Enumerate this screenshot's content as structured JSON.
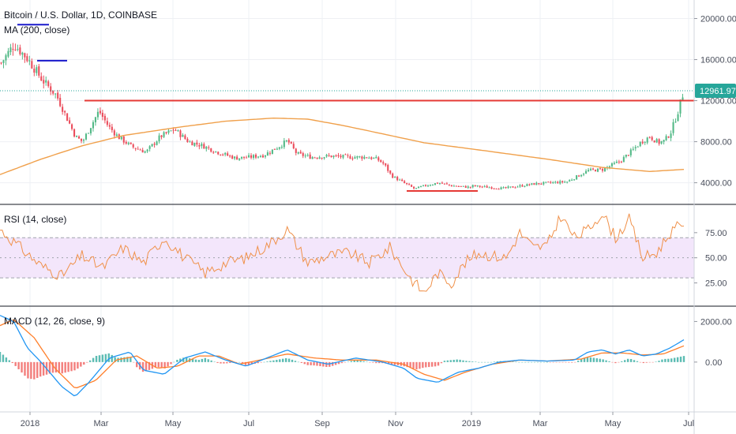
{
  "colors": {
    "up": "#26a69a",
    "down": "#ef5350",
    "candle_up": "#53b987",
    "candle_down": "#eb4d5c",
    "ma": "#f0a04b",
    "rsi": "#f0914a",
    "rsi_band": "#f3e6fb",
    "macd": "#2196f3",
    "signal": "#ff7f2a",
    "red_line": "#e53935",
    "blue_line": "#1a1acc",
    "price_tag_bg": "#26a69a",
    "grid": "#d8d8de"
  },
  "chart_data": [
    {
      "panel": "price",
      "type": "candlestick",
      "title": "Bitcoin / U.S. Dollar, 1D, COINBASE",
      "indicator_label": "MA (200, close)",
      "last_price_label": "12961.97",
      "y_ticks": [
        "20000.00",
        "16000.00",
        "12000.00",
        "8000.00",
        "4000.00"
      ],
      "ylim": [
        2200,
        21500
      ],
      "x_ticks": [
        "2018",
        "Mar",
        "May",
        "Jul",
        "Sep",
        "Nov",
        "2019",
        "Mar",
        "May",
        "Jul"
      ],
      "close_anchors": [
        [
          0,
          15500
        ],
        [
          0.03,
          17500
        ],
        [
          0.06,
          16000
        ],
        [
          0.09,
          14000
        ],
        [
          0.12,
          12500
        ],
        [
          0.14,
          10500
        ],
        [
          0.16,
          8500
        ],
        [
          0.175,
          8000
        ],
        [
          0.19,
          9300
        ],
        [
          0.21,
          11000
        ],
        [
          0.23,
          9500
        ],
        [
          0.25,
          8500
        ],
        [
          0.28,
          7500
        ],
        [
          0.31,
          7000
        ],
        [
          0.34,
          8500
        ],
        [
          0.37,
          9200
        ],
        [
          0.4,
          8000
        ],
        [
          0.43,
          7600
        ],
        [
          0.46,
          7000
        ],
        [
          0.5,
          6400
        ],
        [
          0.53,
          6500
        ],
        [
          0.56,
          6700
        ],
        [
          0.59,
          7500
        ],
        [
          0.61,
          8100
        ],
        [
          0.63,
          6800
        ],
        [
          0.66,
          6500
        ],
        [
          0.7,
          6600
        ],
        [
          0.74,
          6500
        ],
        [
          0.78,
          6500
        ],
        [
          0.8,
          6300
        ],
        [
          0.815,
          5800
        ],
        [
          0.83,
          4700
        ],
        [
          0.86,
          3900
        ],
        [
          0.88,
          3400
        ],
        [
          0.9,
          3700
        ],
        [
          0.93,
          4000
        ],
        [
          0.96,
          3700
        ],
        [
          1.0,
          3550
        ]
      ],
      "close_anchors_2019": [
        [
          0,
          3700
        ],
        [
          0.15,
          3450
        ],
        [
          0.3,
          3900
        ],
        [
          0.45,
          4100
        ],
        [
          0.55,
          5200
        ],
        [
          0.62,
          5300
        ],
        [
          0.7,
          6100
        ],
        [
          0.76,
          7200
        ],
        [
          0.8,
          8000
        ],
        [
          0.84,
          8500
        ],
        [
          0.88,
          7900
        ],
        [
          0.91,
          8100
        ],
        [
          0.94,
          9000
        ],
        [
          0.97,
          10800
        ],
        [
          1.0,
          12961.97
        ]
      ],
      "ma200_anchors": [
        [
          0,
          4800
        ],
        [
          0.06,
          6300
        ],
        [
          0.12,
          7600
        ],
        [
          0.18,
          8600
        ],
        [
          0.26,
          9400
        ],
        [
          0.33,
          10000
        ],
        [
          0.4,
          10300
        ],
        [
          0.45,
          10200
        ],
        [
          0.5,
          9600
        ],
        [
          0.55,
          8900
        ],
        [
          0.62,
          7900
        ],
        [
          0.7,
          7200
        ],
        [
          0.8,
          6300
        ],
        [
          0.88,
          5500
        ],
        [
          0.95,
          5100
        ],
        [
          1.0,
          5300
        ]
      ],
      "annotations": [
        {
          "type": "horizontal_line",
          "color": "red",
          "value": 12000,
          "from": "Feb 2018",
          "to": "Jul 2019"
        },
        {
          "type": "horizontal_line",
          "color": "red",
          "value": 3200,
          "from": "Nov 2018",
          "to": "Jan 2019"
        },
        {
          "type": "horizontal_line",
          "color": "blue",
          "value": 19400,
          "from": "Dec 2017",
          "to": "Jan 2018"
        },
        {
          "type": "horizontal_line",
          "color": "blue",
          "value": 15900,
          "from": "Jan 2018",
          "to": "Feb 2018"
        }
      ]
    },
    {
      "panel": "rsi",
      "type": "line",
      "indicator_label": "RSI (14, close)",
      "y_ticks": [
        "75.00",
        "50.00",
        "25.00"
      ],
      "ylim": [
        5,
        100
      ],
      "bands": [
        30,
        70
      ],
      "anchors": [
        [
          0,
          78
        ],
        [
          0.03,
          60
        ],
        [
          0.06,
          42
        ],
        [
          0.09,
          32
        ],
        [
          0.12,
          52
        ],
        [
          0.15,
          40
        ],
        [
          0.18,
          60
        ],
        [
          0.21,
          45
        ],
        [
          0.24,
          70
        ],
        [
          0.27,
          50
        ],
        [
          0.3,
          35
        ],
        [
          0.33,
          45
        ],
        [
          0.36,
          50
        ],
        [
          0.39,
          62
        ],
        [
          0.42,
          78
        ],
        [
          0.45,
          45
        ],
        [
          0.48,
          52
        ],
        [
          0.51,
          55
        ],
        [
          0.54,
          45
        ],
        [
          0.57,
          60
        ],
        [
          0.6,
          30
        ],
        [
          0.62,
          15
        ],
        [
          0.64,
          35
        ],
        [
          0.66,
          25
        ],
        [
          0.68,
          45
        ],
        [
          0.7,
          55
        ],
        [
          0.72,
          52
        ],
        [
          0.74,
          50
        ],
        [
          0.76,
          75
        ],
        [
          0.78,
          60
        ],
        [
          0.8,
          62
        ],
        [
          0.82,
          92
        ],
        [
          0.84,
          70
        ],
        [
          0.86,
          78
        ],
        [
          0.88,
          95
        ],
        [
          0.9,
          70
        ],
        [
          0.92,
          88
        ],
        [
          0.94,
          50
        ],
        [
          0.96,
          55
        ],
        [
          0.98,
          75
        ],
        [
          1.0,
          85
        ]
      ]
    },
    {
      "panel": "macd",
      "type": "line",
      "indicator_label": "MACD (12, 26, close, 9)",
      "y_ticks": [
        "2000.00",
        "0.00"
      ],
      "ylim": [
        -2300,
        2600
      ],
      "macd_anchors": [
        [
          0,
          2300
        ],
        [
          0.02,
          2000
        ],
        [
          0.04,
          700
        ],
        [
          0.06,
          0
        ],
        [
          0.09,
          -1200
        ],
        [
          0.11,
          -1700
        ],
        [
          0.13,
          -1000
        ],
        [
          0.16,
          200
        ],
        [
          0.19,
          500
        ],
        [
          0.21,
          -400
        ],
        [
          0.24,
          -600
        ],
        [
          0.27,
          200
        ],
        [
          0.3,
          500
        ],
        [
          0.33,
          100
        ],
        [
          0.36,
          -200
        ],
        [
          0.39,
          200
        ],
        [
          0.42,
          600
        ],
        [
          0.45,
          100
        ],
        [
          0.48,
          -100
        ],
        [
          0.52,
          200
        ],
        [
          0.56,
          0
        ],
        [
          0.59,
          -300
        ],
        [
          0.61,
          -800
        ],
        [
          0.64,
          -1000
        ],
        [
          0.67,
          -500
        ],
        [
          0.7,
          -300
        ],
        [
          0.73,
          0
        ],
        [
          0.76,
          100
        ],
        [
          0.8,
          50
        ],
        [
          0.84,
          100
        ],
        [
          0.86,
          500
        ],
        [
          0.88,
          600
        ],
        [
          0.9,
          400
        ],
        [
          0.92,
          600
        ],
        [
          0.94,
          300
        ],
        [
          0.96,
          400
        ],
        [
          0.98,
          700
        ],
        [
          1.0,
          1100
        ]
      ],
      "signal_anchors": [
        [
          0,
          1800
        ],
        [
          0.02,
          2100
        ],
        [
          0.05,
          1200
        ],
        [
          0.08,
          -300
        ],
        [
          0.11,
          -1300
        ],
        [
          0.14,
          -900
        ],
        [
          0.17,
          100
        ],
        [
          0.2,
          300
        ],
        [
          0.23,
          -300
        ],
        [
          0.26,
          -200
        ],
        [
          0.29,
          300
        ],
        [
          0.32,
          300
        ],
        [
          0.35,
          -100
        ],
        [
          0.38,
          100
        ],
        [
          0.42,
          400
        ],
        [
          0.46,
          200
        ],
        [
          0.5,
          100
        ],
        [
          0.55,
          100
        ],
        [
          0.59,
          -100
        ],
        [
          0.62,
          -600
        ],
        [
          0.65,
          -900
        ],
        [
          0.68,
          -500
        ],
        [
          0.72,
          -100
        ],
        [
          0.76,
          100
        ],
        [
          0.8,
          50
        ],
        [
          0.85,
          150
        ],
        [
          0.88,
          450
        ],
        [
          0.91,
          450
        ],
        [
          0.94,
          350
        ],
        [
          0.97,
          400
        ],
        [
          1.0,
          800
        ]
      ]
    }
  ]
}
